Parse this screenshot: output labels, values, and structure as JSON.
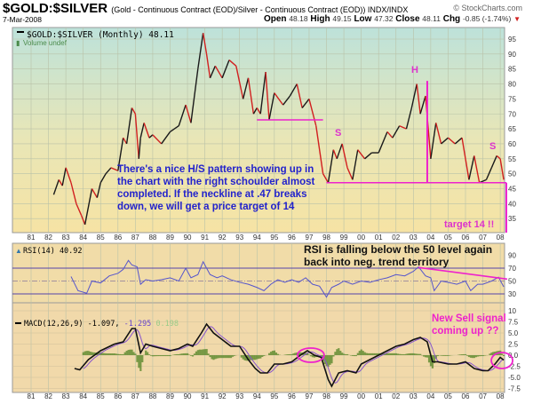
{
  "header": {
    "symbol": "$GOLD:$SILVER",
    "subtitle": "(Gold - Continuous Contract (EOD)/Silver - Continuous Contract (EOD)) INDX/INDX",
    "brand": "© StockCharts.com",
    "date": "7-Mar-2008",
    "open_label": "Open",
    "open": "48.18",
    "high_label": "High",
    "high": "49.15",
    "low_label": "Low",
    "low": "47.32",
    "close_label": "Close",
    "close": "48.11",
    "chg_label": "Chg",
    "chg": "-0.85 (-1.74%)"
  },
  "colors": {
    "up": "#1a1a1a",
    "down": "#d11f1f",
    "annotation": "#ee22cc",
    "note": "#2222cc",
    "rsi": "#5555cc",
    "signal": "#8855cc",
    "hist": "#5e8a2e"
  },
  "chart_data": [
    {
      "type": "line",
      "title": "$GOLD:$SILVER (Monthly) 48.11",
      "legend2": "Volume undef",
      "ylim": [
        32,
        98
      ],
      "yticks": [
        95,
        90,
        85,
        80,
        75,
        70,
        65,
        60,
        55,
        50,
        45,
        40,
        35
      ],
      "xticks": [
        "81",
        "82",
        "83",
        "84",
        "85",
        "86",
        "87",
        "88",
        "89",
        "90",
        "91",
        "92",
        "93",
        "94",
        "95",
        "96",
        "97",
        "98",
        "99",
        "00",
        "01",
        "02",
        "03",
        "04",
        "05",
        "06",
        "07",
        "08"
      ],
      "x": [
        1982.3,
        1982.6,
        1982.8,
        1983.0,
        1983.3,
        1983.6,
        1983.9,
        1984.1,
        1984.5,
        1984.8,
        1985.0,
        1985.3,
        1985.6,
        1986.0,
        1986.3,
        1986.5,
        1986.8,
        1987.0,
        1987.2,
        1987.3,
        1987.5,
        1987.8,
        1988.0,
        1988.5,
        1989.0,
        1989.5,
        1989.9,
        1990.2,
        1990.6,
        1990.9,
        1991.1,
        1991.3,
        1991.6,
        1992.0,
        1992.4,
        1992.8,
        1993.2,
        1993.5,
        1993.8,
        1994.0,
        1994.2,
        1994.5,
        1994.7,
        1995.0,
        1995.5,
        1995.9,
        1996.3,
        1996.6,
        1997.0,
        1997.4,
        1997.8,
        1998.1,
        1998.4,
        1998.6,
        1998.9,
        1999.2,
        1999.5,
        1999.8,
        2000.2,
        2000.6,
        2001.0,
        2001.5,
        2001.8,
        2002.2,
        2002.6,
        2002.9,
        2003.2,
        2003.4,
        2003.7,
        2004.0,
        2004.3,
        2004.6,
        2005.0,
        2005.4,
        2005.8,
        2006.2,
        2006.5,
        2006.8,
        2007.2,
        2007.5,
        2007.8,
        2008.0,
        2008.2
      ],
      "values": [
        43,
        48,
        46,
        52,
        47,
        40,
        36,
        33,
        45,
        42,
        47,
        50,
        52,
        51,
        62,
        60,
        72,
        70,
        55,
        62,
        67,
        62,
        63,
        60,
        64,
        66,
        73,
        67,
        85,
        97,
        90,
        82,
        86,
        82,
        88,
        86,
        75,
        82,
        70,
        72,
        70,
        84,
        68,
        77,
        73,
        76,
        80,
        72,
        75,
        66,
        50,
        47,
        58,
        55,
        60,
        52,
        48,
        58,
        55,
        57,
        57,
        64,
        62,
        66,
        65,
        72,
        80,
        70,
        76,
        55,
        67,
        60,
        62,
        60,
        62,
        48,
        56,
        47,
        48,
        52,
        56,
        55,
        48
      ],
      "annotations": {
        "neckline_left": 68,
        "neckline": 47,
        "left_shoulder": "S",
        "head": "H",
        "right_shoulder": "S",
        "target_label": "target 14 !!",
        "note": [
          "There's a nice H/S pattern showing up in",
          "the chart with the right schoulder almost",
          "completed. If the neckline at .47 breaks",
          "down, we will get a price target of 14"
        ]
      }
    },
    {
      "type": "line",
      "title": "RSI(14) 40.92",
      "yticks": [
        90,
        70,
        50,
        30
      ],
      "levels": [
        70,
        50,
        30
      ],
      "note": [
        "RSI is falling below the 50 level again",
        "back into neg. trend territory"
      ],
      "trendline": {
        "from": [
          2003.3,
          71
        ],
        "to": [
          2008.4,
          53
        ]
      },
      "x": [
        1983.3,
        1983.7,
        1984.2,
        1984.5,
        1985.0,
        1985.5,
        1986.0,
        1986.3,
        1986.6,
        1986.8,
        1987.1,
        1987.3,
        1987.6,
        1988.0,
        1988.5,
        1989.0,
        1989.5,
        1989.9,
        1990.2,
        1990.6,
        1990.9,
        1991.3,
        1991.7,
        1992.0,
        1992.5,
        1993.0,
        1993.5,
        1994.0,
        1994.4,
        1994.8,
        1995.2,
        1995.6,
        1996.0,
        1996.4,
        1996.8,
        1997.2,
        1997.6,
        1998.0,
        1998.3,
        1998.7,
        1999.0,
        1999.5,
        2000.0,
        2000.5,
        2001.0,
        2001.5,
        2002.0,
        2002.5,
        2003.0,
        2003.3,
        2003.7,
        2004.0,
        2004.2,
        2004.6,
        2005.0,
        2005.5,
        2006.0,
        2006.3,
        2006.7,
        2007.0,
        2007.5,
        2007.9,
        2008.2
      ],
      "values": [
        57,
        35,
        31,
        50,
        47,
        58,
        62,
        68,
        82,
        75,
        72,
        45,
        52,
        50,
        52,
        55,
        50,
        70,
        55,
        60,
        80,
        60,
        55,
        58,
        52,
        48,
        45,
        40,
        35,
        45,
        52,
        48,
        52,
        48,
        55,
        45,
        42,
        25,
        40,
        45,
        50,
        45,
        50,
        48,
        52,
        55,
        60,
        58,
        65,
        72,
        58,
        55,
        35,
        50,
        48,
        45,
        50,
        35,
        45,
        45,
        50,
        56,
        41
      ]
    },
    {
      "type": "line",
      "title": "MACD(12,26,9) -1.097,",
      "signal_label": "-1.295",
      "hist_label": "0.198",
      "yticks": [
        "10",
        "7.5",
        "5.0",
        "2.5",
        "0.0",
        "-2.5",
        "-5.0",
        "-7.5"
      ],
      "note": [
        "New Sell signal",
        "coming up ??"
      ],
      "x": [
        1983.5,
        1983.8,
        1984.3,
        1985.0,
        1985.8,
        1986.3,
        1986.8,
        1987.0,
        1987.3,
        1987.6,
        1988.0,
        1988.5,
        1989.0,
        1989.5,
        1990.0,
        1990.3,
        1990.8,
        1991.1,
        1991.5,
        1992.0,
        1992.5,
        1993.0,
        1993.5,
        1993.9,
        1994.2,
        1994.6,
        1995.0,
        1995.5,
        1996.0,
        1996.5,
        1996.9,
        1997.3,
        1997.7,
        1998.1,
        1998.3,
        1998.7,
        1999.2,
        1999.7,
        2000.0,
        2001.0,
        2001.5,
        2002.0,
        2002.5,
        2003.0,
        2003.4,
        2003.8,
        2004.1,
        2004.4,
        2005.0,
        2005.5,
        2006.0,
        2006.5,
        2007.0,
        2007.3,
        2007.7,
        2008.0,
        2008.2
      ],
      "values": [
        -3,
        -3.3,
        -1,
        1,
        2.5,
        3,
        6,
        6,
        0.5,
        2.5,
        2,
        1.5,
        1,
        1.5,
        2.5,
        2,
        5,
        7,
        5,
        3.5,
        2,
        2,
        -1,
        -3,
        -4,
        -4,
        -2,
        -2,
        -1.5,
        0,
        1,
        0,
        -0.5,
        -5.5,
        -7,
        -4,
        -3.5,
        -4,
        -2,
        0,
        1,
        2,
        2.5,
        3.5,
        4,
        3,
        -1.5,
        -1.5,
        -2,
        -2,
        -1.5,
        -3,
        -3.5,
        -3.5,
        -2,
        -0.5,
        -1.1
      ]
    }
  ]
}
